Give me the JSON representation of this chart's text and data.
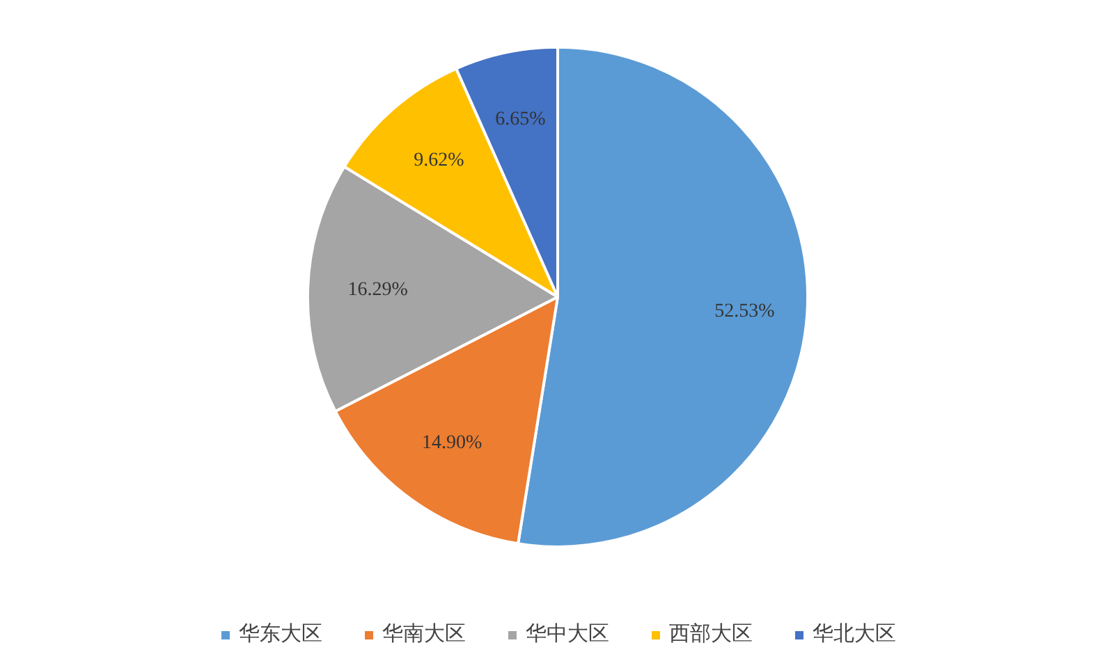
{
  "chart_data": {
    "type": "pie",
    "categories": [
      "华东大区",
      "华南大区",
      "华中大区",
      "西部大区",
      "华北大区"
    ],
    "values": [
      52.53,
      14.9,
      16.29,
      9.62,
      6.65
    ],
    "colors": [
      "#5b9bd5",
      "#ed7d31",
      "#a5a5a5",
      "#ffc000",
      "#4472c4"
    ],
    "value_labels": [
      "52.53%",
      "14.90%",
      "16.29%",
      "9.62%",
      "6.65%"
    ],
    "legend": "bottom"
  }
}
